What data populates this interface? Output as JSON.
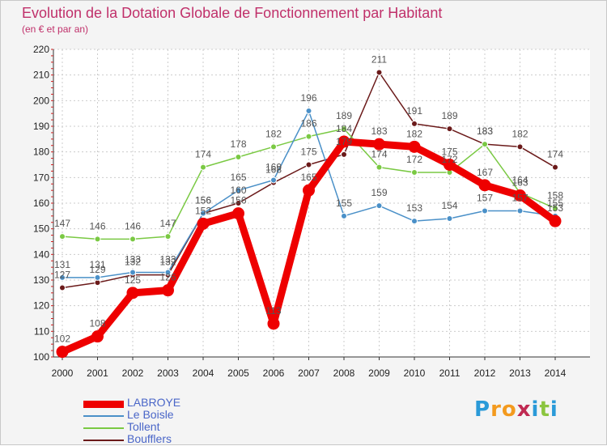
{
  "title": "Evolution de la Dotation Globale de Fonctionnement par Habitant",
  "subtitle": "(en € et par an)",
  "logo": {
    "letters": [
      "P",
      "r",
      "o",
      "x",
      "i",
      "t",
      "i"
    ],
    "colors": [
      "#2a9ad8",
      "#f39a1e",
      "#f39a1e",
      "#c02a52",
      "#2a9ad8",
      "#8bc53f",
      "#2a9ad8"
    ]
  },
  "chart_data": {
    "type": "line",
    "title": "Evolution de la Dotation Globale de Fonctionnement par Habitant",
    "subtitle": "(en € et par an)",
    "xlabel": "",
    "ylabel": "",
    "x": [
      "2000",
      "2001",
      "2002",
      "2003",
      "2004",
      "2005",
      "2006",
      "2007",
      "2008",
      "2009",
      "2010",
      "2011",
      "2012",
      "2013",
      "2014"
    ],
    "ylim": [
      100,
      220
    ],
    "yticks": [
      "100",
      "110",
      "120",
      "130",
      "140",
      "150",
      "160",
      "170",
      "180",
      "190",
      "200",
      "210",
      "220"
    ],
    "grid": true,
    "legend_position": "bottom-left",
    "series": [
      {
        "name": "LABROYE",
        "color": "#ee0000",
        "values": [
          102,
          108,
          125,
          126,
          152,
          156,
          113,
          165,
          184,
          183,
          182,
          175,
          167,
          163,
          153
        ],
        "labels": [
          "102",
          "108",
          "125",
          "126",
          "152",
          "156",
          "113",
          "165",
          "184",
          "183",
          "182",
          "175",
          "167",
          "163",
          "153"
        ]
      },
      {
        "name": "Le Boisle",
        "color": "#4a90c8",
        "values": [
          131,
          131,
          133,
          133,
          156,
          165,
          169,
          196,
          155,
          159,
          153,
          154,
          157,
          157,
          155
        ],
        "labels": [
          "131",
          "131",
          "133",
          "133",
          "156",
          "165",
          "169",
          "196",
          "155",
          "159",
          "153",
          "154",
          "157",
          "157",
          "155"
        ]
      },
      {
        "name": "Tollent",
        "color": "#7ac943",
        "values": [
          147,
          146,
          146,
          147,
          174,
          178,
          182,
          186,
          189,
          174,
          172,
          172,
          183,
          164,
          158
        ],
        "labels": [
          "147",
          "146",
          "146",
          "147",
          "174",
          "178",
          "182",
          "186",
          "189",
          "174",
          "172",
          "172",
          "183",
          "164",
          "158"
        ]
      },
      {
        "name": "Boufflers",
        "color": "#6b1a1a",
        "values": [
          127,
          129,
          132,
          132,
          156,
          160,
          168,
          175,
          179,
          211,
          191,
          189,
          183,
          182,
          174
        ],
        "labels": [
          "127",
          "129",
          "132",
          "132",
          "156",
          "160",
          "168",
          "175",
          "179",
          "211",
          "191",
          "189",
          "183",
          "182",
          "174"
        ]
      }
    ]
  }
}
